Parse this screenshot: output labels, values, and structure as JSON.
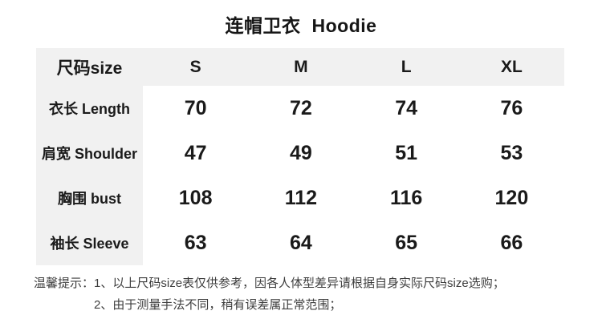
{
  "colors": {
    "background": "#ffffff",
    "table_header_bg": "#f1f1f1",
    "label_column_bg": "#f1f1f1",
    "table_text": "#1a1a1a",
    "note_text": "#3d3d3d"
  },
  "chart_data": {
    "type": "table",
    "title": "连帽卫衣 Hoodie",
    "title_cn": "连帽卫衣",
    "title_en": "Hoodie",
    "columns": [
      "尺码size",
      "S",
      "M",
      "L",
      "XL"
    ],
    "rows": [
      {
        "label": "衣长 Length",
        "values": [
          70,
          72,
          74,
          76
        ]
      },
      {
        "label": "肩宽 Shoulder",
        "values": [
          47,
          49,
          51,
          53
        ]
      },
      {
        "label": "胸围 bust",
        "values": [
          108,
          112,
          116,
          120
        ]
      },
      {
        "label": "袖长 Sleeve",
        "values": [
          63,
          64,
          65,
          66
        ]
      }
    ],
    "notes_prefix": "温馨提示：",
    "notes": [
      "1、以上尺码size表仅供参考，因各人体型差异请根据自身实际尺码size选购；",
      "2、由于测量手法不同，稍有误差属正常范围；"
    ],
    "layout": {
      "grid": false,
      "legend": "none"
    }
  }
}
